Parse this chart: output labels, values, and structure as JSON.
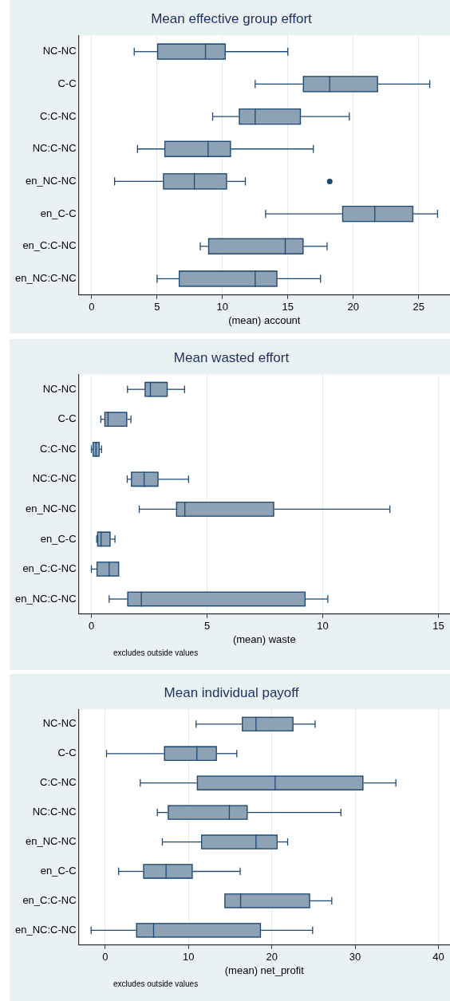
{
  "chart_data": [
    {
      "type": "box",
      "orientation": "horizontal",
      "title": "Mean effective group effort",
      "xlabel": "(mean) account",
      "color": "#8ea2b6",
      "grid": "x",
      "categories": [
        "NC-NC",
        "C-C",
        "C:C-NC",
        "NC:C-NC",
        "en_NC-NC",
        "en_C-C",
        "en_C:C-NC",
        "en_NC:C-NC"
      ],
      "boxes": [
        {
          "low": 3.25,
          "q1": 5.0,
          "median": 8.7,
          "q3": 10.25,
          "high": 15.0
        },
        {
          "low": 12.5,
          "q1": 16.15,
          "median": 18.2,
          "q3": 21.9,
          "high": 25.85
        },
        {
          "low": 9.25,
          "q1": 11.25,
          "median": 12.5,
          "q3": 16.0,
          "high": 19.7
        },
        {
          "low": 3.5,
          "q1": 5.55,
          "median": 8.9,
          "q3": 10.65,
          "high": 16.95
        },
        {
          "low": 1.75,
          "q1": 5.45,
          "median": 7.85,
          "q3": 10.35,
          "high": 11.75,
          "outliers": [
            18.2
          ]
        },
        {
          "low": 13.3,
          "q1": 19.15,
          "median": 21.65,
          "q3": 24.6,
          "high": 26.45
        },
        {
          "low": 8.3,
          "q1": 8.9,
          "median": 14.8,
          "q3": 16.2,
          "high": 18.0
        },
        {
          "low": 5.0,
          "q1": 6.65,
          "median": 12.5,
          "q3": 14.2,
          "high": 17.5
        }
      ],
      "xlim": [
        -1,
        27.4
      ],
      "xticks": [
        0,
        5,
        10,
        15,
        20,
        25
      ]
    },
    {
      "type": "box",
      "orientation": "horizontal",
      "title": "Mean wasted effort",
      "xlabel": "(mean) waste",
      "color": "#8ea2b6",
      "grid": "x",
      "annotations": [
        "excludes outside values"
      ],
      "categories": [
        "NC-NC",
        "C-C",
        "C:C-NC",
        "NC:C-NC",
        "en_NC-NC",
        "en_C-C",
        "en_C:C-NC",
        "en_NC:C-NC"
      ],
      "boxes": [
        {
          "low": 1.56,
          "q1": 2.3,
          "median": 2.55,
          "q3": 3.3,
          "high": 4.03
        },
        {
          "low": 0.41,
          "q1": 0.56,
          "median": 0.72,
          "q3": 1.55,
          "high": 1.71
        },
        {
          "low": 0.0,
          "q1": 0.05,
          "median": 0.2,
          "q3": 0.36,
          "high": 0.44
        },
        {
          "low": 1.55,
          "q1": 1.71,
          "median": 2.28,
          "q3": 2.9,
          "high": 4.2
        },
        {
          "low": 2.07,
          "q1": 3.66,
          "median": 4.04,
          "q3": 7.9,
          "high": 12.9
        },
        {
          "low": 0.23,
          "q1": 0.25,
          "median": 0.42,
          "q3": 0.83,
          "high": 1.02
        },
        {
          "low": 0.0,
          "q1": 0.22,
          "median": 0.77,
          "q3": 1.2,
          "high": 1.2
        },
        {
          "low": 0.77,
          "q1": 1.55,
          "median": 2.16,
          "q3": 9.26,
          "high": 10.22
        }
      ],
      "xlim": [
        -0.55,
        15.5
      ],
      "xticks": [
        0,
        5,
        10,
        15
      ]
    },
    {
      "type": "box",
      "orientation": "horizontal",
      "title": "Mean individual payoff",
      "xlabel": "(mean) net_profit",
      "color": "#8ea2b6",
      "grid": "x",
      "annotations": [
        "excludes outside values"
      ],
      "categories": [
        "NC-NC",
        "C-C",
        "C:C-NC",
        "NC:C-NC",
        "en_NC-NC",
        "en_C-C",
        "en_C:C-NC",
        "en_NC:C-NC"
      ],
      "boxes": [
        {
          "low": 10.9,
          "q1": 16.4,
          "median": 18.1,
          "q3": 22.6,
          "high": 25.2
        },
        {
          "low": 0.15,
          "q1": 7.05,
          "median": 11.0,
          "q3": 13.4,
          "high": 15.8
        },
        {
          "low": 4.2,
          "q1": 11.0,
          "median": 20.4,
          "q3": 31.0,
          "high": 34.9
        },
        {
          "low": 6.25,
          "q1": 7.5,
          "median": 14.9,
          "q3": 17.1,
          "high": 28.3
        },
        {
          "low": 6.85,
          "q1": 11.5,
          "median": 18.1,
          "q3": 20.7,
          "high": 21.9
        },
        {
          "low": 1.6,
          "q1": 4.55,
          "median": 7.3,
          "q3": 10.5,
          "high": 16.2
        },
        {
          "low": 14.3,
          "q1": 14.3,
          "median": 16.25,
          "q3": 24.6,
          "high": 27.2
        },
        {
          "low": -1.7,
          "q1": 3.7,
          "median": 5.8,
          "q3": 18.7,
          "high": 24.9
        }
      ],
      "xlim": [
        -3.2,
        41.4
      ],
      "xticks": [
        0,
        10,
        20,
        30,
        40
      ]
    }
  ]
}
